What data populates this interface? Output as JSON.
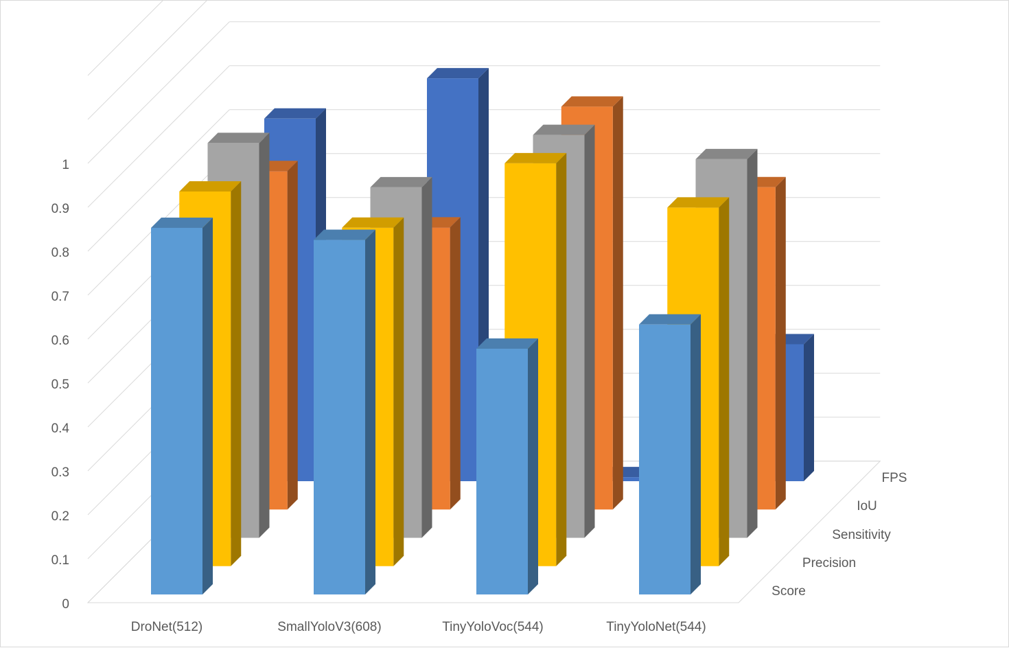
{
  "chart_data": {
    "type": "bar",
    "variant": "3d-column",
    "title": "",
    "xlabel": "",
    "ylabel": "",
    "ylim": [
      0,
      1
    ],
    "yticks": [
      "0",
      "0.1",
      "0.2",
      "0.3",
      "0.4",
      "0.5",
      "0.6",
      "0.7",
      "0.8",
      "0.9",
      "1"
    ],
    "categories": [
      "DroNet(512)",
      "SmallYoloV3(608)",
      "TinyYoloVoc(544)",
      "TinyYoloNet(544)"
    ],
    "grid": true,
    "legend": "depth-axis",
    "series": [
      {
        "name": "Score",
        "color": "#5b9bd5",
        "values": [
          0.91,
          0.88,
          0.61,
          0.67
        ]
      },
      {
        "name": "Precision",
        "color": "#ffc000",
        "values": [
          0.93,
          0.84,
          1.0,
          0.89
        ]
      },
      {
        "name": "Sensitivity",
        "color": "#a5a5a5",
        "values": [
          0.98,
          0.87,
          1.0,
          0.94
        ]
      },
      {
        "name": "IoU",
        "color": "#ed7d31",
        "values": [
          0.84,
          0.7,
          1.0,
          0.8
        ]
      },
      {
        "name": "FPS",
        "color": "#4472c4",
        "values": [
          0.9,
          1.0,
          0.01,
          0.34
        ]
      }
    ]
  }
}
